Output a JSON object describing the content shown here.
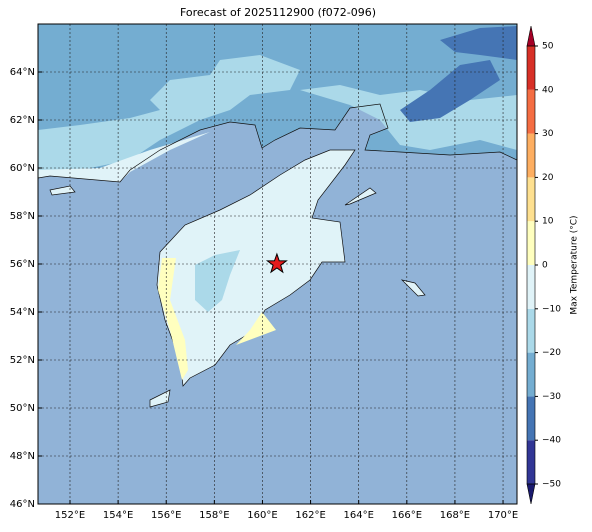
{
  "chart_data": {
    "type": "map",
    "title": "Forecast of 2025112900 (f072-096)",
    "xlim": [
      150.67,
      170.58
    ],
    "ylim": [
      46,
      66
    ],
    "xticks": [
      {
        "value": 152,
        "label": "152°E"
      },
      {
        "value": 154,
        "label": "154°E"
      },
      {
        "value": 156,
        "label": "156°E"
      },
      {
        "value": 158,
        "label": "158°E"
      },
      {
        "value": 160,
        "label": "160°E"
      },
      {
        "value": 162,
        "label": "162°E"
      },
      {
        "value": 164,
        "label": "164°E"
      },
      {
        "value": 166,
        "label": "166°E"
      },
      {
        "value": 168,
        "label": "168°E"
      },
      {
        "value": 170,
        "label": "170°E"
      }
    ],
    "yticks": [
      {
        "value": 46,
        "label": "46°N"
      },
      {
        "value": 48,
        "label": "48°N"
      },
      {
        "value": 50,
        "label": "50°N"
      },
      {
        "value": 52,
        "label": "52°N"
      },
      {
        "value": 54,
        "label": "54°N"
      },
      {
        "value": 56,
        "label": "56°N"
      },
      {
        "value": 58,
        "label": "58°N"
      },
      {
        "value": 60,
        "label": "60°N"
      },
      {
        "value": 62,
        "label": "62°N"
      },
      {
        "value": 64,
        "label": "64°N"
      }
    ],
    "grid": true,
    "marker": {
      "lon": 160.6,
      "lat": 56,
      "color": "#e41a1c"
    },
    "colorbar": {
      "label": "Max Temperature (°C)",
      "lim": [
        -50,
        50
      ],
      "ticks": [
        {
          "value": -50,
          "label": "−50"
        },
        {
          "value": -40,
          "label": "−40"
        },
        {
          "value": -30,
          "label": "−30"
        },
        {
          "value": -20,
          "label": "−20"
        },
        {
          "value": -10,
          "label": "−10"
        },
        0,
        10,
        20,
        30,
        40,
        50
      ],
      "colors": [
        "#313695",
        "#4575b4",
        "#74add1",
        "#abd9e9",
        "#e0f3f8",
        "#ffffbf",
        "#fee090",
        "#fdae61",
        "#f46d43",
        "#d73027"
      ],
      "extend_colors": [
        "#1a1a6e",
        "#a50026"
      ]
    }
  }
}
